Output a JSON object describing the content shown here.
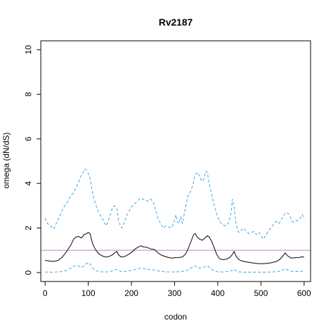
{
  "chart_data": {
    "type": "line",
    "title": "Rv2187",
    "xlabel": "codon",
    "ylabel": "omega (dN/dS)",
    "xlim": [
      -10,
      615
    ],
    "ylim": [
      -0.4,
      10.4
    ],
    "xticks": [
      0,
      100,
      200,
      300,
      400,
      500,
      600
    ],
    "yticks": [
      0,
      2,
      4,
      6,
      8,
      10
    ],
    "grid": false,
    "legend": "none",
    "reference_line": {
      "y": 1,
      "color": "#cc79cc"
    },
    "series": [
      {
        "style": "dashed",
        "color": "#3ea3e0",
        "x": [
          0,
          5,
          12,
          20,
          28,
          35,
          42,
          50,
          58,
          66,
          74,
          82,
          88,
          92,
          96,
          100,
          104,
          108,
          112,
          118,
          124,
          130,
          136,
          142,
          148,
          154,
          160,
          166,
          170,
          174,
          178,
          184,
          190,
          196,
          202,
          208,
          214,
          220,
          226,
          232,
          238,
          244,
          250,
          256,
          262,
          268,
          274,
          280,
          286,
          292,
          298,
          303,
          306,
          310,
          314,
          318,
          322,
          326,
          330,
          336,
          342,
          348,
          354,
          360,
          366,
          372,
          376,
          380,
          386,
          392,
          398,
          404,
          410,
          418,
          424,
          430,
          434,
          438,
          442,
          448,
          454,
          460,
          466,
          472,
          478,
          484,
          490,
          496,
          502,
          506,
          512,
          518,
          524,
          530,
          536,
          542,
          548,
          554,
          560,
          566,
          572,
          578,
          584,
          590,
          596,
          600
        ],
        "y": [
          2.45,
          2.2,
          2.1,
          1.95,
          2.3,
          2.6,
          2.9,
          3.1,
          3.4,
          3.6,
          3.9,
          4.3,
          4.5,
          4.65,
          4.6,
          4.45,
          4.25,
          3.8,
          3.4,
          3.0,
          2.7,
          2.5,
          2.3,
          2.1,
          2.4,
          2.8,
          3.0,
          2.9,
          2.4,
          2.1,
          2.0,
          2.3,
          2.6,
          2.8,
          3.0,
          3.1,
          3.2,
          3.35,
          3.3,
          3.25,
          3.2,
          3.3,
          3.2,
          2.8,
          2.4,
          2.2,
          2.0,
          2.1,
          2.05,
          2.0,
          2.2,
          2.6,
          2.3,
          2.2,
          2.5,
          2.2,
          2.6,
          3.0,
          3.4,
          3.6,
          3.9,
          4.4,
          4.5,
          4.2,
          4.1,
          4.55,
          4.5,
          4.0,
          3.5,
          3.0,
          2.6,
          2.3,
          2.15,
          2.1,
          2.2,
          2.6,
          3.3,
          2.9,
          2.2,
          1.8,
          1.9,
          2.0,
          1.85,
          1.75,
          1.8,
          1.85,
          1.7,
          1.8,
          1.6,
          1.5,
          1.7,
          1.9,
          2.0,
          2.2,
          2.3,
          2.2,
          2.4,
          2.6,
          2.7,
          2.6,
          2.3,
          2.25,
          2.35,
          2.4,
          2.6,
          2.4
        ]
      },
      {
        "style": "solid",
        "color": "#000000",
        "x": [
          0,
          10,
          20,
          30,
          40,
          50,
          60,
          66,
          72,
          78,
          84,
          90,
          96,
          100,
          104,
          110,
          116,
          124,
          132,
          140,
          148,
          156,
          162,
          166,
          170,
          176,
          184,
          192,
          200,
          208,
          216,
          222,
          228,
          234,
          240,
          246,
          252,
          258,
          264,
          270,
          278,
          286,
          294,
          302,
          310,
          318,
          326,
          332,
          338,
          344,
          348,
          352,
          358,
          364,
          370,
          376,
          380,
          386,
          392,
          398,
          404,
          412,
          420,
          428,
          434,
          438,
          442,
          448,
          456,
          466,
          476,
          486,
          496,
          506,
          516,
          526,
          536,
          544,
          550,
          556,
          562,
          570,
          580,
          590,
          596,
          600
        ],
        "y": [
          0.55,
          0.52,
          0.5,
          0.55,
          0.7,
          0.95,
          1.25,
          1.5,
          1.6,
          1.62,
          1.55,
          1.7,
          1.75,
          1.8,
          1.75,
          1.3,
          1.05,
          0.85,
          0.75,
          0.7,
          0.72,
          0.8,
          0.9,
          0.95,
          0.8,
          0.7,
          0.72,
          0.8,
          0.9,
          1.05,
          1.15,
          1.2,
          1.15,
          1.15,
          1.1,
          1.05,
          1.05,
          0.95,
          0.85,
          0.78,
          0.72,
          0.68,
          0.65,
          0.67,
          0.68,
          0.7,
          0.85,
          1.1,
          1.4,
          1.7,
          1.75,
          1.6,
          1.5,
          1.45,
          1.55,
          1.65,
          1.6,
          1.4,
          1.1,
          0.8,
          0.62,
          0.58,
          0.6,
          0.68,
          0.82,
          0.95,
          0.75,
          0.6,
          0.52,
          0.48,
          0.45,
          0.42,
          0.4,
          0.4,
          0.42,
          0.45,
          0.5,
          0.6,
          0.72,
          0.88,
          0.75,
          0.65,
          0.67,
          0.68,
          0.72,
          0.68
        ]
      },
      {
        "style": "dashed",
        "color": "#3ea3e0",
        "x": [
          0,
          10,
          20,
          30,
          40,
          50,
          60,
          66,
          72,
          78,
          84,
          90,
          96,
          100,
          104,
          110,
          116,
          124,
          132,
          140,
          148,
          156,
          162,
          166,
          170,
          176,
          184,
          192,
          200,
          208,
          216,
          222,
          228,
          234,
          240,
          246,
          252,
          258,
          264,
          270,
          278,
          286,
          294,
          302,
          310,
          318,
          326,
          332,
          338,
          344,
          348,
          352,
          358,
          364,
          370,
          376,
          380,
          386,
          392,
          398,
          404,
          412,
          420,
          428,
          434,
          438,
          442,
          448,
          456,
          466,
          476,
          486,
          496,
          506,
          516,
          526,
          536,
          544,
          550,
          556,
          562,
          570,
          580,
          590,
          596,
          600
        ],
        "y": [
          0.03,
          0.02,
          0.02,
          0.03,
          0.05,
          0.1,
          0.2,
          0.28,
          0.3,
          0.3,
          0.22,
          0.3,
          0.4,
          0.45,
          0.4,
          0.2,
          0.1,
          0.05,
          0.03,
          0.03,
          0.04,
          0.08,
          0.12,
          0.15,
          0.1,
          0.05,
          0.05,
          0.07,
          0.1,
          0.13,
          0.18,
          0.2,
          0.18,
          0.16,
          0.14,
          0.13,
          0.12,
          0.1,
          0.07,
          0.05,
          0.04,
          0.03,
          0.03,
          0.03,
          0.04,
          0.05,
          0.08,
          0.13,
          0.2,
          0.28,
          0.3,
          0.22,
          0.2,
          0.22,
          0.26,
          0.3,
          0.25,
          0.15,
          0.08,
          0.04,
          0.03,
          0.03,
          0.04,
          0.06,
          0.1,
          0.15,
          0.08,
          0.04,
          0.02,
          0.02,
          0.02,
          0.02,
          0.02,
          0.02,
          0.02,
          0.03,
          0.04,
          0.06,
          0.1,
          0.18,
          0.12,
          0.06,
          0.05,
          0.05,
          0.06,
          0.05
        ]
      }
    ]
  }
}
